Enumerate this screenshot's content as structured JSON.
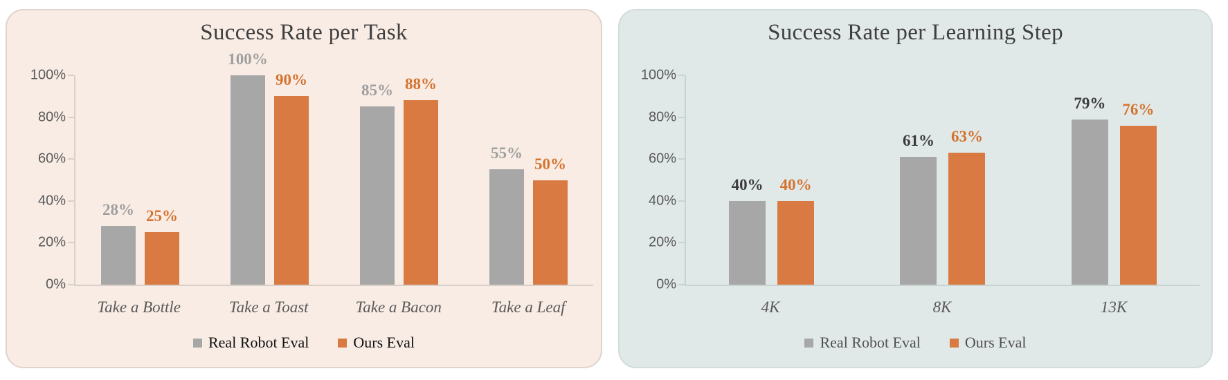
{
  "chart_data": [
    {
      "type": "bar",
      "title": "Success Rate per Task",
      "categories": [
        "Take a Bottle",
        "Take a Toast",
        "Take a Bacon",
        "Take a Leaf"
      ],
      "series": [
        {
          "name": "Real Robot Eval",
          "values": [
            28,
            100,
            85,
            55
          ],
          "bar_color": "#a7a7a7",
          "value_label_color": "#9f9f9f"
        },
        {
          "name": "Ours Eval",
          "values": [
            25,
            90,
            88,
            50
          ],
          "bar_color": "#d87a42",
          "value_label_color": "#d4732f"
        }
      ],
      "value_suffix": "%",
      "xlabel": "",
      "ylabel": "",
      "ylim": [
        0,
        100
      ],
      "y_ticks": [
        "100%",
        "80%",
        "60%",
        "40%",
        "20%",
        "0%"
      ],
      "gridlines": false,
      "legend_position": "bottom",
      "legend_text_color": "#111111",
      "panel_background": "#f9ece4",
      "panel_border_color": "#ded4cd",
      "axis_line_color": "#d8cfc8",
      "title_color": "#3f3f3f",
      "tick_label_color": "#595959",
      "category_label_color": "#595959"
    },
    {
      "type": "bar",
      "title": "Success Rate per Learning Step",
      "categories": [
        "4K",
        "8K",
        "13K"
      ],
      "series": [
        {
          "name": "Real Robot Eval",
          "values": [
            40,
            61,
            79
          ],
          "bar_color": "#a7a7a7",
          "value_label_color": "#3b3b3b"
        },
        {
          "name": "Ours Eval",
          "values": [
            40,
            63,
            76
          ],
          "bar_color": "#d87a42",
          "value_label_color": "#d4732f"
        }
      ],
      "value_suffix": "%",
      "xlabel": "",
      "ylabel": "",
      "ylim": [
        0,
        100
      ],
      "y_ticks": [
        "100%",
        "80%",
        "60%",
        "40%",
        "20%",
        "0%"
      ],
      "gridlines": false,
      "legend_position": "bottom",
      "legend_text_color": "#4f4f4f",
      "panel_background": "#e1e9e8",
      "panel_border_color": "#d2dcdb",
      "axis_line_color": "#c8d2d0",
      "title_color": "#3f3f3f",
      "tick_label_color": "#595959",
      "category_label_color": "#595959"
    }
  ]
}
